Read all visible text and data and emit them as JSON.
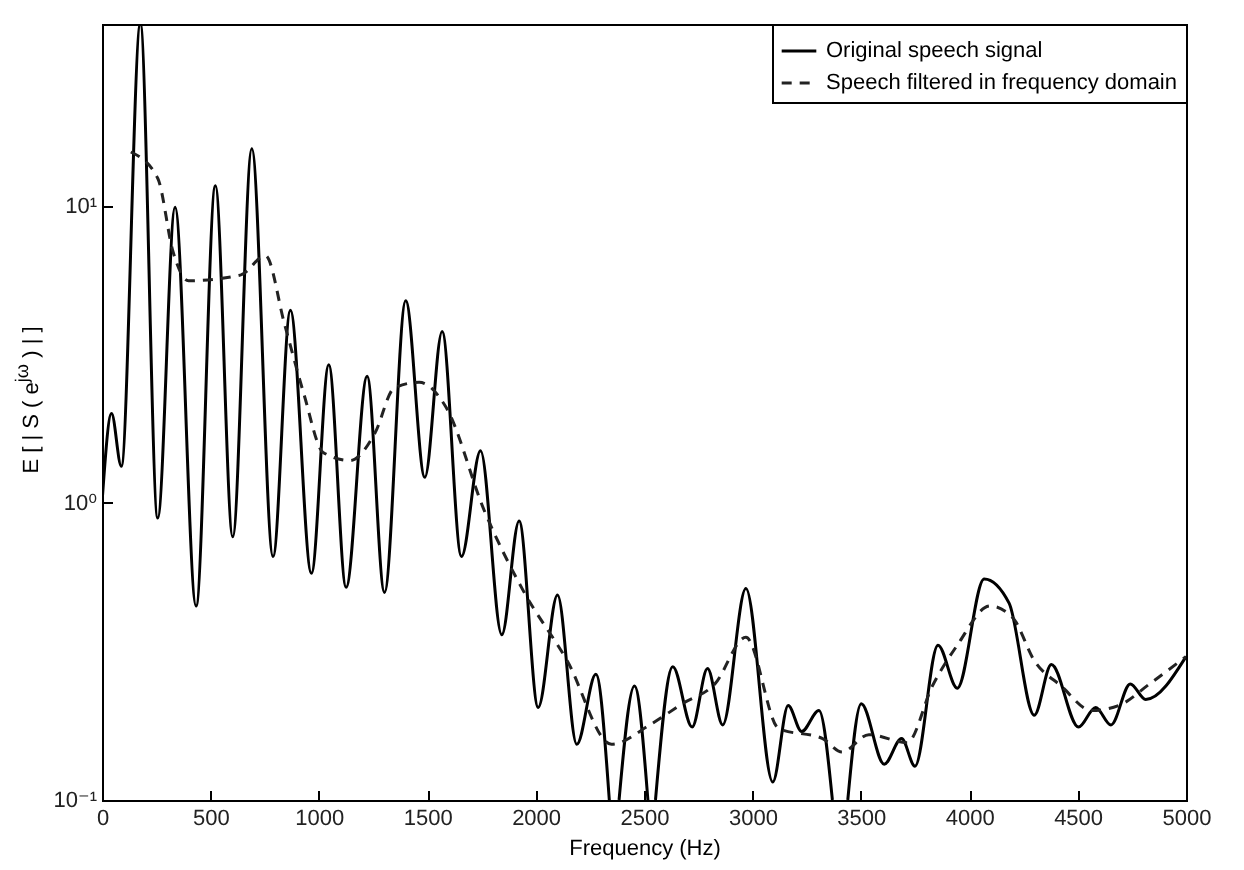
{
  "chart_data": {
    "type": "line",
    "xlabel": "Frequency (Hz)",
    "ylabel": "E [ | S ( e$^{jω}$ ) | ]",
    "log": "y",
    "grid": false,
    "legend": "top right",
    "marker": "none",
    "xlim": [
      0,
      5000
    ],
    "xticks": [
      0,
      500,
      1000,
      1500,
      2000,
      2500,
      3000,
      3500,
      4000,
      4500,
      5000
    ],
    "ylim": [
      0.1,
      41
    ],
    "yticks": [
      {
        "value": 0.1,
        "label": "10⁻¹"
      },
      {
        "value": 1,
        "label": "10⁰"
      },
      {
        "value": 10,
        "label": "10¹"
      }
    ],
    "series": [
      {
        "name": "Original speech signal",
        "color": "#000000",
        "line_style": "solid",
        "x": [
          0,
          44,
          89,
          177,
          257,
          337,
          434,
          523,
          603,
          691,
          789,
          869,
          966,
          1046,
          1126,
          1223,
          1303,
          1401,
          1489,
          1569,
          1658,
          1746,
          1844,
          1924,
          2012,
          2101,
          2190,
          2278,
          2340,
          2360,
          2385,
          2456,
          2518,
          2535,
          2553,
          2633,
          2722,
          2793,
          2863,
          2970,
          3094,
          3165,
          3227,
          3307,
          3369,
          3400,
          3440,
          3502,
          3608,
          3688,
          3750,
          3856,
          3945,
          4069,
          4184,
          4300,
          4379,
          4504,
          4583,
          4654,
          4743,
          4814,
          5000
        ],
        "values": [
          1.0,
          2.0,
          1.33,
          41,
          0.89,
          9.9,
          0.45,
          11.7,
          0.77,
          15.6,
          0.66,
          4.46,
          0.58,
          2.92,
          0.52,
          2.67,
          0.5,
          4.8,
          1.22,
          3.78,
          0.66,
          1.5,
          0.36,
          0.87,
          0.205,
          0.49,
          0.154,
          0.265,
          0.1,
          null,
          0.1,
          0.242,
          0.1,
          null,
          0.1,
          0.281,
          0.176,
          0.277,
          0.179,
          0.515,
          0.115,
          0.208,
          0.17,
          0.2,
          0.1,
          null,
          0.1,
          0.211,
          0.132,
          0.161,
          0.13,
          0.332,
          0.238,
          0.555,
          0.46,
          0.193,
          0.286,
          0.176,
          0.205,
          0.179,
          0.246,
          0.218,
          0.304
        ]
      },
      {
        "name": "Speech filtered in frequency domain",
        "color": "#222222",
        "line_style": "dashed",
        "x": [
          133,
          257,
          328,
          399,
          638,
          754,
          842,
          931,
          1020,
          1144,
          1259,
          1348,
          1463,
          1587,
          1764,
          1941,
          2145,
          2350,
          2527,
          2677,
          2827,
          2970,
          3121,
          3324,
          3413,
          3537,
          3714,
          3830,
          3945,
          4096,
          4202,
          4300,
          4424,
          4565,
          4690,
          4832,
          5000
        ],
        "values": [
          15.2,
          12.4,
          7.0,
          5.6,
          5.85,
          6.8,
          4.0,
          2.33,
          1.48,
          1.39,
          1.72,
          2.44,
          2.55,
          2.1,
          0.94,
          0.51,
          0.295,
          0.154,
          0.179,
          0.211,
          0.246,
          0.353,
          0.174,
          0.161,
          0.145,
          0.166,
          0.156,
          0.242,
          0.332,
          0.45,
          0.41,
          0.295,
          0.242,
          0.2,
          0.208,
          0.246,
          0.304
        ]
      }
    ]
  }
}
